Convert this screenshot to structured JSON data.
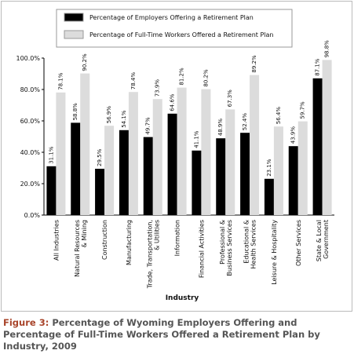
{
  "chart_data": {
    "type": "bar",
    "caption_label": "Figure 3:",
    "caption": "Percentage of Wyoming Employers Offering and Percentage of Full-Time Workers Offered a Retirement Plan by Industry, 2009",
    "x_label": "Industry",
    "categories": [
      "All Industries",
      "Natural Resources\n& Mining",
      "Construction",
      "Manufacturing",
      "Trade, Transportation,\n& Utilities",
      "Information",
      "Financial Activities",
      "Professional &\nBusiness Services",
      "Educational &\nHealth Services",
      "Leisure & Hospitality",
      "Other Services",
      "State & Local\nGovernment"
    ],
    "series": [
      {
        "name": "Percentage of Employers Offering a Retirement Plan",
        "color": "#000000",
        "values": [
          31.1,
          58.8,
          29.5,
          54.1,
          49.7,
          64.6,
          41.1,
          48.9,
          52.4,
          23.1,
          43.9,
          87.1
        ],
        "value_labels": [
          "31.1%",
          "58.8%",
          "29.5%",
          "54.1%",
          "49.7%",
          "64.6%",
          "41.1%",
          "48.9%",
          "52.4%",
          "23.1%",
          "43.9%",
          "87.1%"
        ]
      },
      {
        "name": "Percentage of Full-Time Workers Offered a Retirement Plan",
        "color": "#dcdcdc",
        "values": [
          78.1,
          90.2,
          56.9,
          78.4,
          73.9,
          81.2,
          80.2,
          67.3,
          89.2,
          56.4,
          59.7,
          98.8
        ],
        "value_labels": [
          "78.1%",
          "90.2%",
          "56.9%",
          "78.4%",
          "73.9%",
          "81.2%",
          "80.2%",
          "67.3%",
          "89.2%",
          "56.4%",
          "59.7%",
          "98.8%"
        ]
      }
    ],
    "ylim": [
      0,
      100
    ],
    "yticks": [
      {
        "value": 0,
        "label": "0.0%"
      },
      {
        "value": 20,
        "label": "20.0%"
      },
      {
        "value": 40,
        "label": "40.0%"
      },
      {
        "value": 60,
        "label": "60.0%"
      },
      {
        "value": 80,
        "label": "80.0%"
      },
      {
        "value": 100,
        "label": "100.0%"
      }
    ],
    "grid": false
  }
}
